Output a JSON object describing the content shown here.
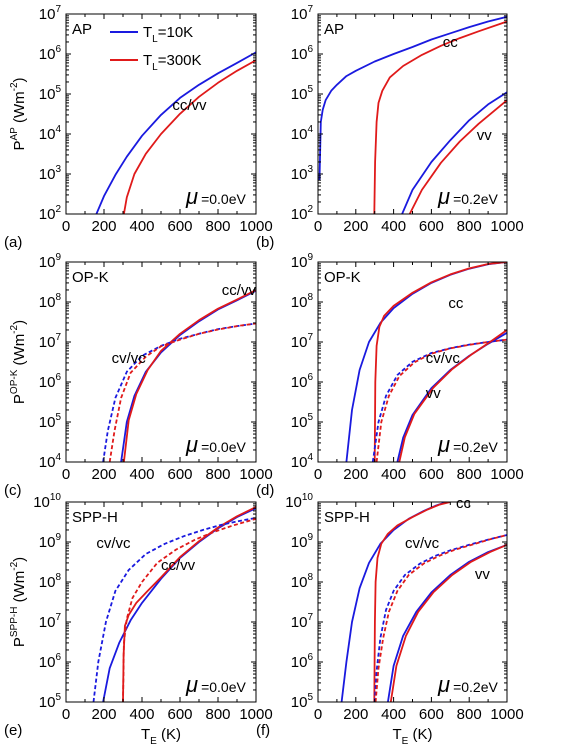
{
  "figure": {
    "legend": [
      {
        "label_main": "T",
        "label_sub": "L",
        "label_rest": "=10K",
        "color": "#1a1adf"
      },
      {
        "label_main": "T",
        "label_sub": "L",
        "label_rest": "=300K",
        "color": "#e01a1a"
      }
    ],
    "xlabel_main": "T",
    "xlabel_sub": "E",
    "xlabel_rest": " (K)",
    "colors": {
      "TL_10K": "#1a1adf",
      "TL_300K": "#e01a1a",
      "axis": "#000000"
    }
  },
  "chart_data": [
    {
      "panel": "(a)",
      "type": "line",
      "title": "AP",
      "ylabel": {
        "main": "P",
        "sup": "AP",
        "rest": " (Wm",
        "sup2": "-2",
        "end": ")"
      },
      "mu_label": "=0.0eV",
      "xlim": [
        0,
        1000
      ],
      "ylim_exp": [
        2,
        7
      ],
      "yscale": "log",
      "xticks": [
        "0",
        "200",
        "400",
        "600",
        "800",
        "1000"
      ],
      "yticks_exp": [
        "2",
        "3",
        "4",
        "5",
        "6",
        "7"
      ],
      "annotations": [
        {
          "text": "cc/vv",
          "x": 560,
          "y": 40000
        }
      ],
      "series": [
        {
          "color": "#1a1adf",
          "dash": false,
          "x": [
            160,
            200,
            260,
            320,
            400,
            500,
            600,
            700,
            800,
            900,
            1000
          ],
          "y": [
            100,
            280,
            950,
            2700,
            9000,
            30000,
            80000,
            170000,
            330000,
            600000,
            1100000
          ]
        },
        {
          "color": "#e01a1a",
          "dash": false,
          "x": [
            305,
            320,
            360,
            420,
            500,
            600,
            700,
            800,
            900,
            1000
          ],
          "y": [
            100,
            260,
            1000,
            3200,
            10000,
            32000,
            85000,
            190000,
            380000,
            700000
          ]
        }
      ]
    },
    {
      "panel": "(b)",
      "type": "line",
      "title": "AP",
      "ylabel": null,
      "mu_label": "=0.2eV",
      "xlim": [
        0,
        1000
      ],
      "ylim_exp": [
        2,
        7
      ],
      "yscale": "log",
      "xticks": [
        "0",
        "200",
        "400",
        "600",
        "800",
        "1000"
      ],
      "yticks_exp": [
        "2",
        "3",
        "4",
        "5",
        "6",
        "7"
      ],
      "annotations": [
        {
          "text": "cc",
          "x": 660,
          "y": 1500000
        },
        {
          "text": "vv",
          "x": 840,
          "y": 7000
        }
      ],
      "series": [
        {
          "color": "#1a1adf",
          "dash": false,
          "x": [
            8,
            15,
            25,
            40,
            70,
            100,
            150,
            200,
            300,
            400,
            500,
            600,
            700,
            800,
            900,
            1000
          ],
          "y": [
            700,
            20000,
            40000,
            70000,
            120000,
            170000,
            280000,
            380000,
            650000,
            1000000,
            1500000,
            2300000,
            3300000,
            4700000,
            6500000,
            8500000
          ]
        },
        {
          "color": "#e01a1a",
          "dash": false,
          "x": [
            298,
            302,
            310,
            320,
            340,
            380,
            450,
            550,
            650,
            750,
            850,
            1000
          ],
          "y": [
            100,
            2000,
            20000,
            60000,
            120000,
            260000,
            500000,
            950000,
            1600000,
            2500000,
            3700000,
            6500000
          ]
        },
        {
          "color": "#1a1adf",
          "dash": false,
          "x": [
            445,
            500,
            600,
            700,
            800,
            900,
            1000
          ],
          "y": [
            100,
            400,
            2000,
            7000,
            22000,
            55000,
            110000
          ]
        },
        {
          "color": "#e01a1a",
          "dash": false,
          "x": [
            485,
            550,
            650,
            750,
            850,
            1000
          ],
          "y": [
            100,
            400,
            1900,
            6500,
            18000,
            70000
          ]
        }
      ]
    },
    {
      "panel": "(c)",
      "type": "line",
      "title": "OP-K",
      "ylabel": {
        "main": "P",
        "sup": "OP-K",
        "rest": " (Wm",
        "sup2": "-2",
        "end": ")"
      },
      "mu_label": "=0.0eV",
      "xlim": [
        0,
        1000
      ],
      "ylim_exp": [
        4,
        9
      ],
      "yscale": "log",
      "xticks": [
        "0",
        "200",
        "400",
        "600",
        "800",
        "1000"
      ],
      "yticks_exp": [
        "4",
        "5",
        "6",
        "7",
        "8",
        "9"
      ],
      "annotations": [
        {
          "text": "cc/vv",
          "x": 820,
          "y": 150000000
        },
        {
          "text": "cv/vc",
          "x": 240,
          "y": 3000000
        }
      ],
      "series": [
        {
          "color": "#1a1adf",
          "dash": false,
          "x": [
            290,
            320,
            360,
            420,
            500,
            600,
            700,
            800,
            900,
            1000
          ],
          "y": [
            10000,
            100000,
            450000,
            1800000,
            5500000,
            15000000,
            33000000,
            65000000,
            110000000,
            190000000
          ]
        },
        {
          "color": "#e01a1a",
          "dash": false,
          "x": [
            305,
            330,
            370,
            430,
            500,
            600,
            700,
            800,
            900,
            1000
          ],
          "y": [
            10000,
            110000,
            500000,
            2000000,
            6000000,
            16000000,
            35000000,
            68000000,
            115000000,
            200000000
          ]
        },
        {
          "color": "#1a1adf",
          "dash": true,
          "x": [
            195,
            220,
            260,
            320,
            400,
            500,
            600,
            700,
            800,
            900,
            1000
          ],
          "y": [
            10000,
            60000,
            400000,
            1800000,
            4500000,
            8000000,
            12000000,
            16000000,
            21000000,
            25000000,
            29000000
          ]
        },
        {
          "color": "#e01a1a",
          "dash": true,
          "x": [
            230,
            255,
            290,
            340,
            420,
            500,
            600,
            700,
            800,
            900,
            1000
          ],
          "y": [
            10000,
            60000,
            400000,
            1700000,
            4300000,
            7800000,
            11500000,
            16000000,
            20500000,
            25000000,
            29000000
          ]
        }
      ]
    },
    {
      "panel": "(d)",
      "type": "line",
      "title": "OP-K",
      "ylabel": null,
      "mu_label": "=0.2eV",
      "xlim": [
        0,
        1000
      ],
      "ylim_exp": [
        4,
        9
      ],
      "yscale": "log",
      "xticks": [
        "0",
        "200",
        "400",
        "600",
        "800",
        "1000"
      ],
      "yticks_exp": [
        "4",
        "5",
        "6",
        "7",
        "8",
        "9"
      ],
      "annotations": [
        {
          "text": "cc",
          "x": 690,
          "y": 70000000
        },
        {
          "text": "cv/vc",
          "x": 570,
          "y": 3000000
        },
        {
          "text": "vv",
          "x": 570,
          "y": 400000
        }
      ],
      "series": [
        {
          "color": "#1a1adf",
          "dash": false,
          "x": [
            150,
            180,
            220,
            270,
            330,
            400,
            500,
            600,
            700,
            800,
            900,
            1000
          ],
          "y": [
            10000,
            200000,
            2000000,
            10000000,
            30000000,
            70000000,
            160000000,
            300000000,
            480000000,
            680000000,
            880000000,
            1000000000
          ]
        },
        {
          "color": "#e01a1a",
          "dash": false,
          "x": [
            300,
            303,
            310,
            325,
            350,
            400,
            500,
            600,
            700,
            800,
            900,
            1000
          ],
          "y": [
            10000,
            1000000,
            8000000,
            24000000,
            45000000,
            80000000,
            170000000,
            310000000,
            490000000,
            690000000,
            890000000,
            1000000000
          ]
        },
        {
          "color": "#1a1adf",
          "dash": true,
          "x": [
            290,
            320,
            360,
            420,
            500,
            600,
            700,
            800,
            900,
            1000
          ],
          "y": [
            10000,
            100000,
            450000,
            1500000,
            3200000,
            5300000,
            7000000,
            8600000,
            10000000,
            11500000
          ]
        },
        {
          "color": "#e01a1a",
          "dash": true,
          "x": [
            310,
            335,
            375,
            430,
            510,
            600,
            700,
            800,
            900,
            1000
          ],
          "y": [
            10000,
            100000,
            450000,
            1400000,
            3100000,
            5100000,
            6900000,
            8500000,
            10000000,
            11500000
          ]
        },
        {
          "color": "#1a1adf",
          "dash": false,
          "x": [
            420,
            450,
            500,
            600,
            700,
            800,
            900,
            1000
          ],
          "y": [
            10000,
            40000,
            150000,
            700000,
            2000000,
            4500000,
            9000000,
            17000000
          ]
        },
        {
          "color": "#e01a1a",
          "dash": false,
          "x": [
            430,
            460,
            510,
            610,
            710,
            810,
            910,
            1000
          ],
          "y": [
            10000,
            42000,
            160000,
            720000,
            2100000,
            4800000,
            10000000,
            20000000
          ]
        }
      ]
    },
    {
      "panel": "(e)",
      "type": "line",
      "title": "SPP-H",
      "ylabel": {
        "main": "P",
        "sup": "SPP-H",
        "rest": " (Wm",
        "sup2": "-2",
        "end": ")"
      },
      "mu_label": "=0.0eV",
      "xlim": [
        0,
        1000
      ],
      "ylim_exp": [
        5,
        10
      ],
      "yscale": "log",
      "xticks": [
        "0",
        "200",
        "400",
        "600",
        "800",
        "1000"
      ],
      "yticks_exp": [
        "5",
        "6",
        "7",
        "8",
        "9",
        "10"
      ],
      "annotations": [
        {
          "text": "cv/vc",
          "x": 160,
          "y": 700000000
        },
        {
          "text": "cc/vv",
          "x": 500,
          "y": 200000000
        }
      ],
      "series": [
        {
          "color": "#1a1adf",
          "dash": false,
          "x": [
            195,
            230,
            280,
            340,
            400,
            500,
            600,
            700,
            800,
            900,
            1000
          ],
          "y": [
            100000,
            700000,
            3000000,
            11000000,
            30000000,
            120000000,
            400000000,
            1000000000,
            2200000000,
            4200000000,
            7000000000
          ]
        },
        {
          "color": "#e01a1a",
          "dash": false,
          "x": [
            300,
            303,
            310,
            330,
            370,
            430,
            500,
            600,
            700,
            800,
            900,
            1000
          ],
          "y": [
            100000,
            1500000,
            8000000,
            15000000,
            30000000,
            60000000,
            130000000,
            420000000,
            1050000000,
            2300000000,
            4400000000,
            7500000000
          ]
        },
        {
          "color": "#1a1adf",
          "dash": true,
          "x": [
            145,
            170,
            210,
            260,
            330,
            420,
            520,
            620,
            720,
            820,
            920,
            1000
          ],
          "y": [
            100000,
            1000000,
            10000000,
            60000000,
            200000000,
            500000000,
            900000000,
            1400000000,
            2000000000,
            2700000000,
            3400000000,
            4000000000
          ]
        },
        {
          "color": "#e01a1a",
          "dash": true,
          "x": [
            300,
            305,
            320,
            350,
            400,
            480,
            580,
            680,
            780,
            880,
            1000
          ],
          "y": [
            100000,
            3000000,
            12000000,
            40000000,
            100000000,
            300000000,
            650000000,
            1150000000,
            1800000000,
            2600000000,
            3800000000
          ]
        }
      ]
    },
    {
      "panel": "(f)",
      "type": "line",
      "title": "SPP-H",
      "ylabel": null,
      "mu_label": "=0.2eV",
      "xlim": [
        0,
        1000
      ],
      "ylim_exp": [
        5,
        10
      ],
      "yscale": "log",
      "xticks": [
        "0",
        "200",
        "400",
        "600",
        "800",
        "1000"
      ],
      "yticks_exp": [
        "5",
        "6",
        "7",
        "8",
        "9",
        "10"
      ],
      "annotations": [
        {
          "text": "cc",
          "x": 730,
          "y": 7000000000
        },
        {
          "text": "cv/vc",
          "x": 460,
          "y": 700000000
        },
        {
          "text": "vv",
          "x": 830,
          "y": 120000000
        }
      ],
      "series": [
        {
          "color": "#1a1adf",
          "dash": false,
          "x": [
            125,
            150,
            180,
            220,
            270,
            330,
            400,
            480,
            560,
            620,
            680
          ],
          "y": [
            100000,
            1000000,
            10000000,
            70000000,
            300000000,
            900000000,
            2000000000,
            3800000000,
            6000000000,
            8000000000,
            10000000000
          ]
        },
        {
          "color": "#e01a1a",
          "dash": false,
          "x": [
            298,
            301,
            305,
            315,
            335,
            370,
            420,
            500,
            580,
            640,
            700
          ],
          "y": [
            100000,
            10000000,
            100000000,
            400000000,
            900000000,
            1600000000,
            2600000000,
            4200000000,
            6500000000,
            8500000000,
            10000000000
          ]
        },
        {
          "color": "#1a1adf",
          "dash": true,
          "x": [
            300,
            310,
            330,
            360,
            400,
            460,
            540,
            620,
            700,
            800,
            900,
            1000
          ],
          "y": [
            100000,
            600000,
            4000000,
            20000000,
            60000000,
            150000000,
            290000000,
            450000000,
            620000000,
            850000000,
            1150000000,
            1500000000
          ]
        },
        {
          "color": "#e01a1a",
          "dash": true,
          "x": [
            305,
            320,
            345,
            375,
            420,
            480,
            560,
            640,
            720,
            820,
            920,
            1000
          ],
          "y": [
            100000,
            700000,
            4000000,
            18000000,
            60000000,
            150000000,
            290000000,
            450000000,
            630000000,
            870000000,
            1200000000,
            1500000000
          ]
        },
        {
          "color": "#1a1adf",
          "dash": false,
          "x": [
            370,
            400,
            450,
            520,
            600,
            700,
            800,
            900,
            1000
          ],
          "y": [
            100000,
            800000,
            4500000,
            18000000,
            55000000,
            150000000,
            320000000,
            560000000,
            850000000
          ]
        },
        {
          "color": "#e01a1a",
          "dash": false,
          "x": [
            385,
            415,
            465,
            530,
            610,
            710,
            810,
            910,
            1000
          ],
          "y": [
            100000,
            800000,
            4500000,
            18000000,
            55000000,
            150000000,
            320000000,
            560000000,
            850000000
          ]
        }
      ]
    }
  ]
}
